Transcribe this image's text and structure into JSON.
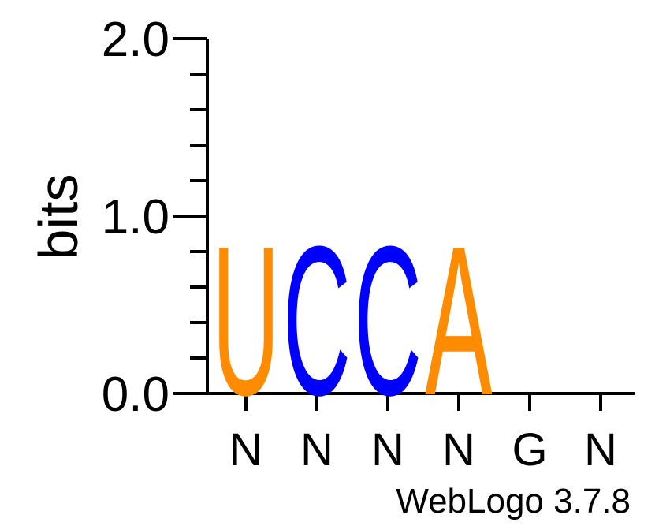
{
  "chart_data": {
    "type": "sequence-logo",
    "ylabel": "bits",
    "ylim": [
      0,
      2.0
    ],
    "y_major_ticks": [
      {
        "value": 0.0,
        "label": "0.0"
      },
      {
        "value": 1.0,
        "label": "1.0"
      },
      {
        "value": 2.0,
        "label": "2.0"
      }
    ],
    "y_minor_step": 0.2,
    "positions": [
      {
        "label": "N",
        "letters": [
          {
            "char": "U",
            "bits": 0.82,
            "color": "#ff8c00"
          }
        ]
      },
      {
        "label": "N",
        "letters": [
          {
            "char": "C",
            "bits": 0.82,
            "color": "#0000ff"
          }
        ]
      },
      {
        "label": "N",
        "letters": [
          {
            "char": "C",
            "bits": 0.82,
            "color": "#0000ff"
          }
        ]
      },
      {
        "label": "N",
        "letters": [
          {
            "char": "A",
            "bits": 0.82,
            "color": "#ff8c00"
          }
        ]
      },
      {
        "label": "G",
        "letters": []
      },
      {
        "label": "N",
        "letters": []
      }
    ],
    "footer": "WebLogo 3.7.8"
  }
}
